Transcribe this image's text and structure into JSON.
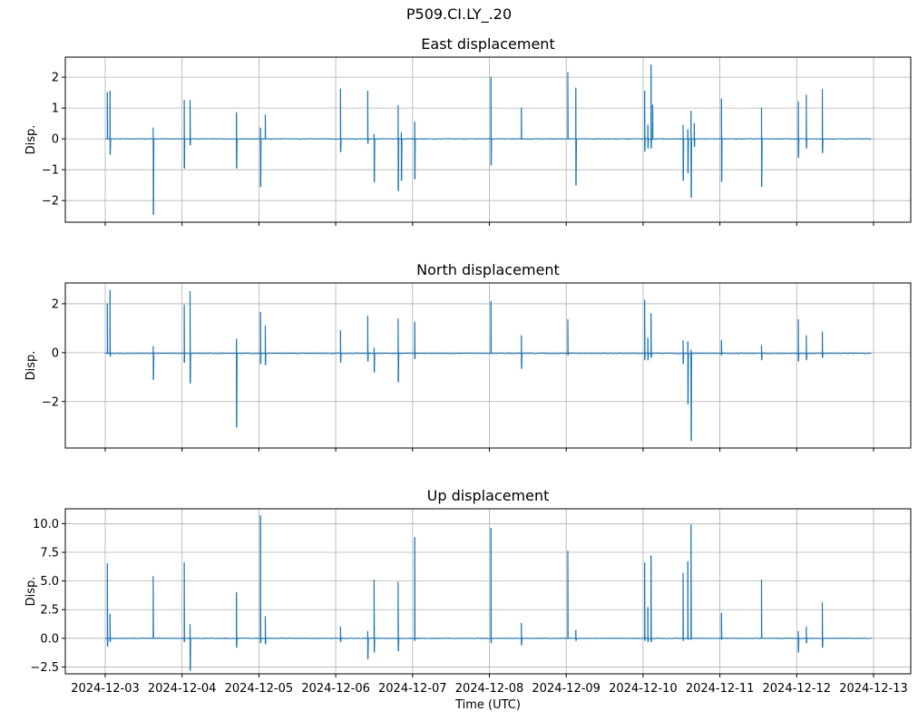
{
  "figure": {
    "suptitle": "P509.CI.LY_.20"
  },
  "colors": {
    "series": "#1f77b4",
    "grid": "#b0b0b0",
    "axes": "#000000"
  },
  "chart_data": [
    {
      "type": "line",
      "title": "East displacement",
      "ylabel": "Disp.",
      "xlabel": "",
      "x_range": [
        "2024-12-03",
        "2024-12-13"
      ],
      "ylim": [
        -2.7,
        2.65
      ],
      "yticks": [
        -2,
        -1,
        0,
        1,
        2
      ],
      "yticklabels": [
        "−2",
        "−1",
        "0",
        "1",
        "2"
      ],
      "grid": true,
      "series": [
        {
          "baseline": 0.0,
          "spikes": [
            [
              "2024-12-03T00:40",
              1.5,
              0.0
            ],
            [
              "2024-12-03T01:30",
              1.55,
              -0.5
            ],
            [
              "2024-12-03T15:00",
              0.35,
              -2.45
            ],
            [
              "2024-12-04T00:40",
              1.25,
              -0.95
            ],
            [
              "2024-12-04T02:30",
              1.25,
              -0.2
            ],
            [
              "2024-12-04T17:00",
              0.85,
              -0.95
            ],
            [
              "2024-12-05T00:30",
              0.35,
              -1.55
            ],
            [
              "2024-12-05T02:00",
              0.78,
              0.0
            ],
            [
              "2024-12-06T01:30",
              1.62,
              -0.42
            ],
            [
              "2024-12-06T10:00",
              1.55,
              -0.15
            ],
            [
              "2024-12-06T12:00",
              0.15,
              -1.4
            ],
            [
              "2024-12-06T19:30",
              1.08,
              -1.68
            ],
            [
              "2024-12-06T20:30",
              0.2,
              -1.35
            ],
            [
              "2024-12-07T00:40",
              0.55,
              -1.3
            ],
            [
              "2024-12-08T00:30",
              2.0,
              -0.85
            ],
            [
              "2024-12-08T10:00",
              1.0,
              0.0
            ],
            [
              "2024-12-09T00:30",
              2.15,
              0.0
            ],
            [
              "2024-12-09T03:00",
              1.65,
              -1.5
            ],
            [
              "2024-12-10T00:30",
              1.55,
              -0.4
            ],
            [
              "2024-12-10T01:30",
              0.45,
              -0.3
            ],
            [
              "2024-12-10T02:30",
              2.4,
              -0.3
            ],
            [
              "2024-12-10T03:00",
              1.1,
              0.0
            ],
            [
              "2024-12-10T12:30",
              0.45,
              -1.35
            ],
            [
              "2024-12-10T14:00",
              0.3,
              -1.1
            ],
            [
              "2024-12-10T15:00",
              0.9,
              -1.9
            ],
            [
              "2024-12-10T16:00",
              0.5,
              -0.25
            ],
            [
              "2024-12-11T00:30",
              1.3,
              -1.38
            ],
            [
              "2024-12-11T13:00",
              1.0,
              -1.55
            ],
            [
              "2024-12-12T00:30",
              1.2,
              -0.6
            ],
            [
              "2024-12-12T03:00",
              1.42,
              -0.3
            ],
            [
              "2024-12-12T08:00",
              1.6,
              -0.45
            ]
          ]
        }
      ]
    },
    {
      "type": "line",
      "title": "North displacement",
      "ylabel": "Disp.",
      "xlabel": "",
      "x_range": [
        "2024-12-03",
        "2024-12-13"
      ],
      "ylim": [
        -3.9,
        2.85
      ],
      "yticks": [
        -2,
        0,
        2
      ],
      "yticklabels": [
        "−2",
        "0",
        "2"
      ],
      "grid": true,
      "series": [
        {
          "baseline": -0.03,
          "spikes": [
            [
              "2024-12-03T00:40",
              2.0,
              0.0
            ],
            [
              "2024-12-03T01:30",
              2.55,
              -0.15
            ],
            [
              "2024-12-03T15:00",
              0.25,
              -1.1
            ],
            [
              "2024-12-04T00:40",
              1.95,
              -0.4
            ],
            [
              "2024-12-04T02:30",
              2.5,
              -1.25
            ],
            [
              "2024-12-04T17:00",
              0.55,
              -3.05
            ],
            [
              "2024-12-05T00:30",
              1.65,
              -0.45
            ],
            [
              "2024-12-05T02:00",
              1.1,
              -0.5
            ],
            [
              "2024-12-06T01:30",
              0.9,
              -0.4
            ],
            [
              "2024-12-06T10:00",
              1.5,
              -0.35
            ],
            [
              "2024-12-06T12:00",
              0.2,
              -0.8
            ],
            [
              "2024-12-06T19:30",
              1.38,
              -1.2
            ],
            [
              "2024-12-07T00:40",
              1.25,
              -0.25
            ],
            [
              "2024-12-08T00:30",
              2.1,
              0.0
            ],
            [
              "2024-12-08T10:00",
              0.7,
              -0.65
            ],
            [
              "2024-12-09T00:30",
              1.35,
              -0.1
            ],
            [
              "2024-12-10T00:30",
              2.15,
              -0.3
            ],
            [
              "2024-12-10T01:30",
              0.6,
              -0.3
            ],
            [
              "2024-12-10T02:30",
              1.6,
              -0.2
            ],
            [
              "2024-12-10T12:30",
              0.5,
              -0.45
            ],
            [
              "2024-12-10T14:00",
              0.45,
              -2.1
            ],
            [
              "2024-12-10T15:00",
              0.1,
              -3.6
            ],
            [
              "2024-12-11T00:30",
              0.5,
              -0.1
            ],
            [
              "2024-12-11T13:00",
              0.3,
              -0.3
            ],
            [
              "2024-12-12T00:30",
              1.35,
              -0.35
            ],
            [
              "2024-12-12T03:00",
              0.7,
              -0.3
            ],
            [
              "2024-12-12T08:00",
              0.85,
              -0.2
            ]
          ]
        }
      ]
    },
    {
      "type": "line",
      "title": "Up displacement",
      "ylabel": "Disp.",
      "xlabel": "Time (UTC)",
      "x_range": [
        "2024-12-03",
        "2024-12-13"
      ],
      "xticklabels": [
        "2024-12-03",
        "2024-12-04",
        "2024-12-05",
        "2024-12-06",
        "2024-12-07",
        "2024-12-08",
        "2024-12-09",
        "2024-12-10",
        "2024-12-11",
        "2024-12-12",
        "2024-12-13"
      ],
      "ylim": [
        -3.1,
        11.3
      ],
      "yticks": [
        -2.5,
        0.0,
        2.5,
        5.0,
        7.5,
        10.0
      ],
      "yticklabels": [
        "−2.5",
        "0.0",
        "2.5",
        "5.0",
        "7.5",
        "10.0"
      ],
      "grid": true,
      "series": [
        {
          "baseline": 0.0,
          "spikes": [
            [
              "2024-12-03T00:40",
              6.5,
              -0.7
            ],
            [
              "2024-12-03T01:30",
              2.1,
              -0.3
            ],
            [
              "2024-12-03T15:00",
              5.4,
              0.0
            ],
            [
              "2024-12-04T00:40",
              6.6,
              -0.3
            ],
            [
              "2024-12-04T02:30",
              1.2,
              -2.8
            ],
            [
              "2024-12-04T17:00",
              4.0,
              -0.8
            ],
            [
              "2024-12-05T00:30",
              10.7,
              -0.4
            ],
            [
              "2024-12-05T02:00",
              1.9,
              -0.5
            ],
            [
              "2024-12-06T01:30",
              1.0,
              -0.3
            ],
            [
              "2024-12-06T10:00",
              0.6,
              -1.8
            ],
            [
              "2024-12-06T12:00",
              5.1,
              -1.2
            ],
            [
              "2024-12-06T19:30",
              4.9,
              -1.1
            ],
            [
              "2024-12-07T00:40",
              8.8,
              -0.2
            ],
            [
              "2024-12-08T00:30",
              9.6,
              -0.4
            ],
            [
              "2024-12-08T10:00",
              1.3,
              -0.6
            ],
            [
              "2024-12-09T00:30",
              7.6,
              0.0
            ],
            [
              "2024-12-09T03:00",
              0.7,
              -0.2
            ],
            [
              "2024-12-10T00:30",
              6.6,
              -0.2
            ],
            [
              "2024-12-10T01:30",
              2.7,
              -0.3
            ],
            [
              "2024-12-10T02:30",
              7.2,
              -0.3
            ],
            [
              "2024-12-10T12:30",
              5.7,
              -0.2
            ],
            [
              "2024-12-10T14:00",
              6.7,
              -0.1
            ],
            [
              "2024-12-10T15:00",
              9.9,
              -0.1
            ],
            [
              "2024-12-11T00:30",
              2.2,
              -0.1
            ],
            [
              "2024-12-11T13:00",
              5.1,
              0.0
            ],
            [
              "2024-12-12T00:30",
              0.6,
              -1.2
            ],
            [
              "2024-12-12T03:00",
              1.0,
              -0.4
            ],
            [
              "2024-12-12T08:00",
              3.1,
              -0.8
            ]
          ]
        }
      ]
    }
  ]
}
